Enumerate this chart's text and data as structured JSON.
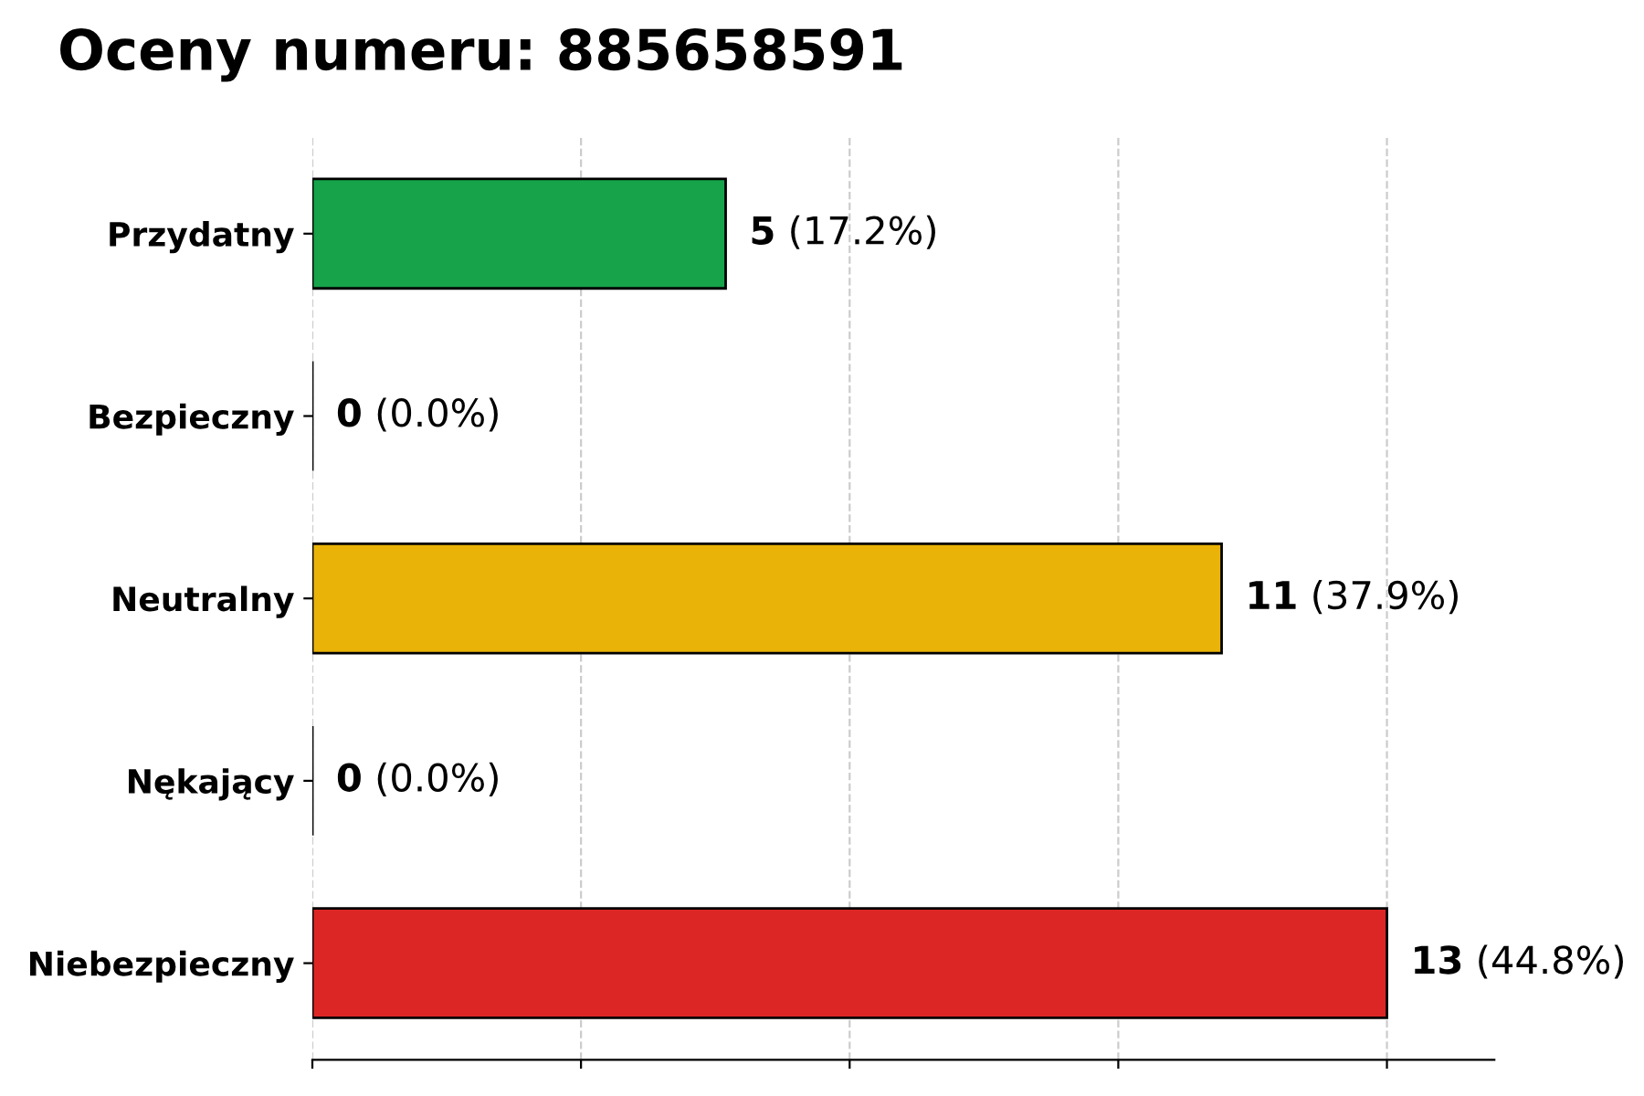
{
  "chart_data": {
    "type": "bar",
    "orientation": "horizontal",
    "title": "Oceny numeru: 885658591",
    "categories": [
      "Przydatny",
      "Bezpieczny",
      "Neutralny",
      "Nękający",
      "Niebezpieczny"
    ],
    "values": [
      5,
      0,
      11,
      0,
      13
    ],
    "colors": [
      "#16a34a",
      "#000000",
      "#eab308",
      "#000000",
      "#dc2626"
    ],
    "value_labels": [
      "5 (17.2%)",
      "0 (0.0%)",
      "11 (37.9%)",
      "0 (0.0%)",
      "13 (44.8%)"
    ],
    "xlim": [
      0,
      14.3
    ],
    "xticks": [
      {
        "value": 0,
        "label": null
      },
      {
        "value": 3.25,
        "label": null
      },
      {
        "value": 6.5,
        "label": null
      },
      {
        "value": 9.75,
        "label": null
      },
      {
        "value": 13,
        "label": null
      }
    ],
    "tick_labels": "y",
    "grid": "x"
  }
}
